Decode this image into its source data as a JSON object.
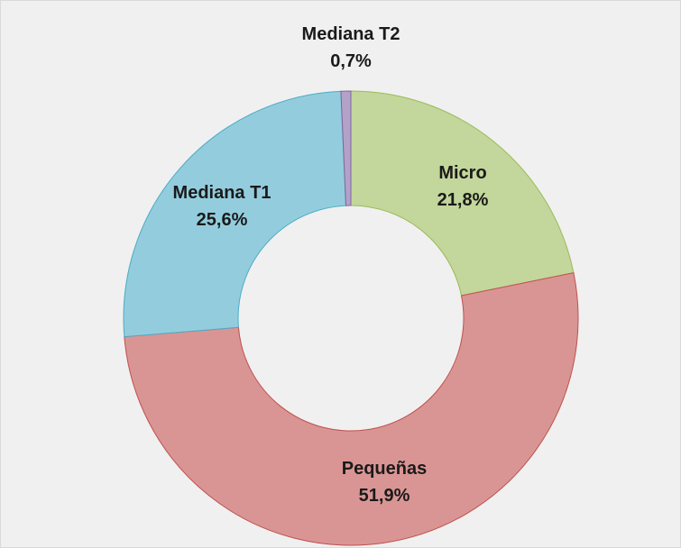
{
  "chart_data": {
    "type": "donut",
    "categories": [
      "Micro",
      "Pequeñas",
      "Mediana T1",
      "Mediana T2"
    ],
    "values": [
      21.8,
      51.9,
      25.6,
      0.7
    ],
    "value_labels": [
      "21,8%",
      "51,9%",
      "25,6%",
      "0,7%"
    ],
    "colors": [
      "#c3d69b",
      "#d99594",
      "#93cddd",
      "#b3a2c7"
    ],
    "strokes": [
      "#9bbb59",
      "#c0504d",
      "#4bacc6",
      "#8064a2"
    ]
  }
}
